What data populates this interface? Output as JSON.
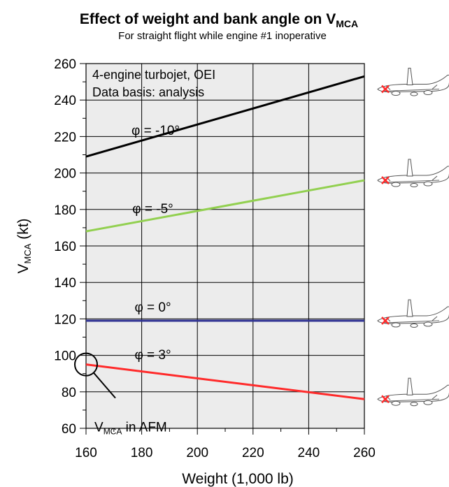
{
  "chart_data": {
    "type": "line",
    "title": {
      "main": "Effect of weight and bank angle on V",
      "subscript": "MCA"
    },
    "subtitle": "For straight flight while engine #1 inoperative",
    "xlabel": "Weight (1,000 lb)",
    "ylabel": {
      "main": "V",
      "subscript": "MCA",
      "suffix": " (kt)"
    },
    "xlim": [
      160,
      260
    ],
    "ylim": [
      60,
      260
    ],
    "xticks": [
      160,
      180,
      200,
      220,
      240,
      260
    ],
    "yticks": [
      60,
      80,
      100,
      120,
      140,
      160,
      180,
      200,
      220,
      240,
      260
    ],
    "grid": true,
    "annotations": [
      "4-engine turbojet, OEI",
      "Data basis: analysis"
    ],
    "afm_marker": {
      "x": 160,
      "y": 95,
      "label_main": "V",
      "label_subscript": "MCA",
      "label_suffix": " in AFM"
    },
    "series": [
      {
        "name": "φ = -10°",
        "color": "#000000",
        "x": [
          160,
          260
        ],
        "y": [
          209,
          253
        ],
        "label_pos": [
          185,
          221
        ]
      },
      {
        "name": "φ = -5°",
        "color": "#92d050",
        "x": [
          160,
          260
        ],
        "y": [
          168,
          196
        ],
        "label_pos": [
          184,
          178
        ]
      },
      {
        "name": "φ = 0°",
        "color": "#2e3192",
        "x": [
          160,
          260
        ],
        "y": [
          119,
          119
        ],
        "label_pos": [
          184,
          124
        ]
      },
      {
        "name": "φ = 3°",
        "color": "#ff2a2a",
        "x": [
          160,
          260
        ],
        "y": [
          95,
          76
        ],
        "label_pos": [
          184,
          98
        ]
      }
    ],
    "aircraft_icons": [
      {
        "name": "aircraft-icon-bank-minus-10",
        "y": 246
      },
      {
        "name": "aircraft-icon-bank-minus-5",
        "y": 196
      },
      {
        "name": "aircraft-icon-bank-0",
        "y": 119
      },
      {
        "name": "aircraft-icon-bank-3",
        "y": 76
      }
    ]
  }
}
